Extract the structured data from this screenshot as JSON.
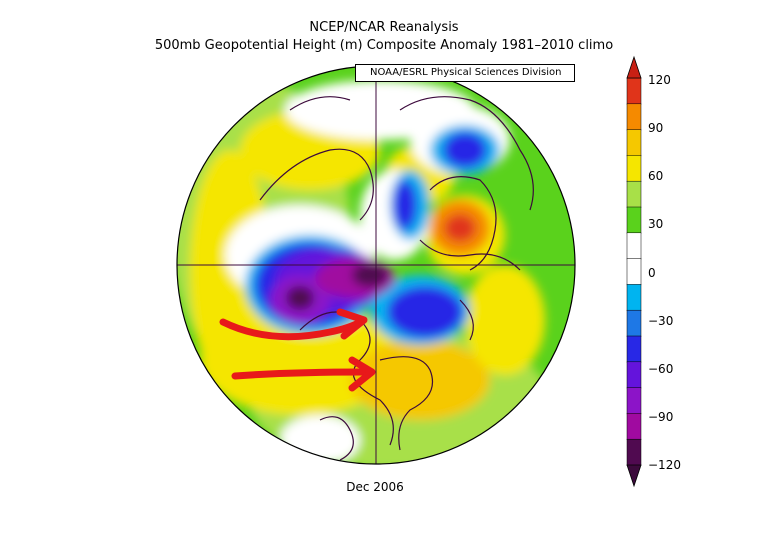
{
  "header": {
    "title_line1": "NCEP/NCAR Reanalysis",
    "title_line2": "500mb Geopotential Height (m) Composite Anomaly 1981–2010 climo",
    "credit": "NOAA/ESRL Physical Sciences Division"
  },
  "footer": {
    "date": "Dec 2006"
  },
  "colorbar": {
    "ticks": [
      "120",
      "90",
      "60",
      "30",
      "0",
      "−30",
      "−60",
      "−90",
      "−120"
    ],
    "colors": [
      "#e0341a",
      "#f58a00",
      "#f5c800",
      "#f5e600",
      "#a8e048",
      "#5ad21c",
      "#ffffff",
      "#ffffff",
      "#00b4f0",
      "#1e78e6",
      "#2828e6",
      "#6414dc",
      "#8c14c8",
      "#a00aa0",
      "#500a50"
    ]
  },
  "annotations": {
    "arrows": 2,
    "arrow_color": "#e8191a"
  }
}
